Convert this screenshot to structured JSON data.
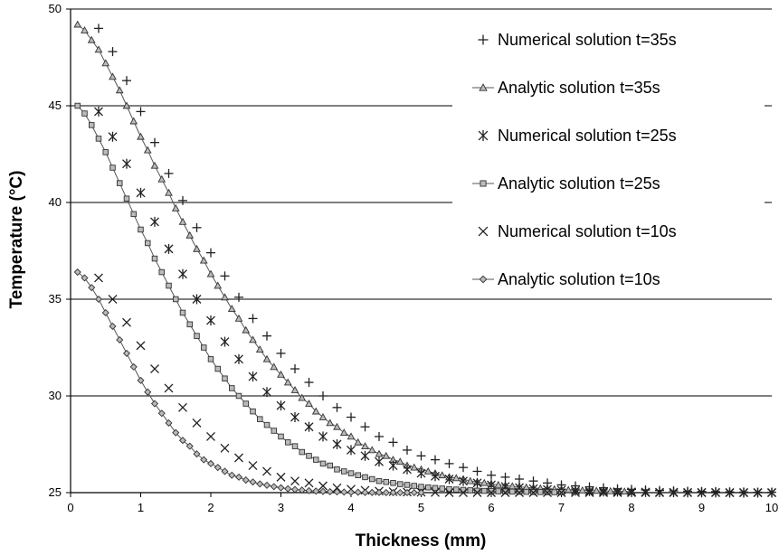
{
  "chart_data": {
    "type": "line",
    "title": "",
    "xlabel": "Thickness (mm)",
    "ylabel": "Temperature (°C)",
    "xlim": [
      0,
      10
    ],
    "ylim": [
      25,
      50
    ],
    "x_ticks": [
      "0",
      "1",
      "2",
      "3",
      "4",
      "5",
      "6",
      "7",
      "8",
      "9",
      "10"
    ],
    "y_ticks": [
      "25",
      "30",
      "35",
      "40",
      "45",
      "50"
    ],
    "grid": "horizontal",
    "legend_position": "top-right",
    "colors": {
      "line": "#555555",
      "marker": "#222222",
      "grid": "#000000"
    },
    "series": [
      {
        "name": "Numerical solution t=35s",
        "marker": "plus",
        "line": false,
        "x": [
          0.4,
          0.6,
          0.8,
          1.0,
          1.2,
          1.4,
          1.6,
          1.8,
          2.0,
          2.2,
          2.4,
          2.6,
          2.8,
          3.0,
          3.2,
          3.4,
          3.6,
          3.8,
          4.0,
          4.2,
          4.4,
          4.6,
          4.8,
          5.0,
          5.2,
          5.4,
          5.6,
          5.8,
          6.0,
          6.2,
          6.4,
          6.6,
          6.8,
          7.0,
          7.2,
          7.4,
          7.6,
          7.8,
          8.0,
          8.2,
          8.4,
          8.6,
          8.8,
          9.0,
          9.2,
          9.4,
          9.6,
          9.8,
          10.0
        ],
        "y": [
          49.0,
          47.8,
          46.3,
          44.7,
          43.1,
          41.5,
          40.1,
          38.7,
          37.4,
          36.2,
          35.1,
          34.0,
          33.1,
          32.2,
          31.4,
          30.7,
          30.0,
          29.4,
          28.9,
          28.4,
          27.9,
          27.6,
          27.2,
          26.9,
          26.7,
          26.5,
          26.3,
          26.1,
          25.9,
          25.8,
          25.7,
          25.6,
          25.5,
          25.4,
          25.35,
          25.3,
          25.25,
          25.2,
          25.17,
          25.14,
          25.11,
          25.09,
          25.07,
          25.06,
          25.05,
          25.04,
          25.03,
          25.02,
          25.02
        ]
      },
      {
        "name": "Analytic solution t=35s",
        "marker": "triangle",
        "line": true,
        "x": [
          0.1,
          0.2,
          0.3,
          0.4,
          0.5,
          0.6,
          0.7,
          0.8,
          0.9,
          1.0,
          1.1,
          1.2,
          1.3,
          1.4,
          1.5,
          1.6,
          1.7,
          1.8,
          1.9,
          2.0,
          2.1,
          2.2,
          2.3,
          2.4,
          2.5,
          2.6,
          2.7,
          2.8,
          2.9,
          3.0,
          3.1,
          3.2,
          3.3,
          3.4,
          3.5,
          3.6,
          3.7,
          3.8,
          3.9,
          4.0,
          4.1,
          4.2,
          4.3,
          4.4,
          4.5,
          4.6,
          4.7,
          4.8,
          4.9,
          5.0,
          5.1,
          5.2,
          5.3,
          5.4,
          5.5,
          5.6,
          5.7,
          5.8,
          5.9,
          6.0,
          6.1,
          6.2,
          6.3,
          6.4,
          6.5,
          6.6,
          6.7,
          6.8,
          6.9,
          7.0,
          7.1,
          7.2,
          7.3,
          7.4,
          7.5,
          7.6,
          7.7,
          7.8,
          7.9,
          8.0
        ],
        "y": [
          49.2,
          48.9,
          48.4,
          47.9,
          47.2,
          46.5,
          45.8,
          45.0,
          44.2,
          43.4,
          42.7,
          41.9,
          41.2,
          40.5,
          39.7,
          39.0,
          38.3,
          37.6,
          37.0,
          36.3,
          35.7,
          35.1,
          34.5,
          34.0,
          33.4,
          32.9,
          32.4,
          31.9,
          31.5,
          31.1,
          30.7,
          30.3,
          29.9,
          29.6,
          29.2,
          28.9,
          28.6,
          28.4,
          28.1,
          27.9,
          27.6,
          27.4,
          27.2,
          27.0,
          26.9,
          26.7,
          26.6,
          26.4,
          26.3,
          26.2,
          26.1,
          26.0,
          25.9,
          25.8,
          25.75,
          25.7,
          25.6,
          25.55,
          25.5,
          25.45,
          25.4,
          25.37,
          25.33,
          25.3,
          25.27,
          25.24,
          25.22,
          25.2,
          25.18,
          25.16,
          25.14,
          25.13,
          25.12,
          25.11,
          25.1,
          25.09,
          25.08,
          25.07,
          25.06,
          25.05
        ]
      },
      {
        "name": "Numerical solution t=25s",
        "marker": "asterisk",
        "line": false,
        "x": [
          0.4,
          0.6,
          0.8,
          1.0,
          1.2,
          1.4,
          1.6,
          1.8,
          2.0,
          2.2,
          2.4,
          2.6,
          2.8,
          3.0,
          3.2,
          3.4,
          3.6,
          3.8,
          4.0,
          4.2,
          4.4,
          4.6,
          4.8,
          5.0,
          5.2,
          5.4,
          5.6,
          5.8,
          6.0,
          6.2,
          6.4,
          6.6,
          6.8,
          7.0,
          7.2,
          7.4,
          7.6,
          7.8,
          8.0,
          8.2,
          8.4,
          8.6,
          8.8,
          9.0,
          9.2,
          9.4,
          9.6,
          9.8,
          10.0
        ],
        "y": [
          44.7,
          43.4,
          42.0,
          40.5,
          39.0,
          37.6,
          36.3,
          35.0,
          33.9,
          32.8,
          31.9,
          31.0,
          30.2,
          29.5,
          28.9,
          28.4,
          27.9,
          27.5,
          27.2,
          26.9,
          26.6,
          26.4,
          26.2,
          26.0,
          25.85,
          25.7,
          25.6,
          25.5,
          25.4,
          25.32,
          25.26,
          25.2,
          25.16,
          25.13,
          25.1,
          25.08,
          25.06,
          25.05,
          25.04,
          25.03,
          25.02,
          25.02,
          25.01,
          25.01,
          25.01,
          25.0,
          25.0,
          25.0,
          25.0
        ]
      },
      {
        "name": "Analytic solution  t=25s",
        "marker": "square",
        "line": true,
        "x": [
          0.1,
          0.2,
          0.3,
          0.4,
          0.5,
          0.6,
          0.7,
          0.8,
          0.9,
          1.0,
          1.1,
          1.2,
          1.3,
          1.4,
          1.5,
          1.6,
          1.7,
          1.8,
          1.9,
          2.0,
          2.1,
          2.2,
          2.3,
          2.4,
          2.5,
          2.6,
          2.7,
          2.8,
          2.9,
          3.0,
          3.1,
          3.2,
          3.3,
          3.4,
          3.5,
          3.6,
          3.7,
          3.8,
          3.9,
          4.0,
          4.1,
          4.2,
          4.3,
          4.4,
          4.5,
          4.6,
          4.7,
          4.8,
          4.9,
          5.0,
          5.1,
          5.2,
          5.3,
          5.4,
          5.5,
          5.6,
          5.7,
          5.8,
          5.9,
          6.0,
          6.1,
          6.2,
          6.3,
          6.4,
          6.5,
          6.6,
          6.7,
          6.8,
          6.9,
          7.0
        ],
        "y": [
          45.0,
          44.6,
          44.0,
          43.3,
          42.6,
          41.8,
          41.0,
          40.2,
          39.4,
          38.6,
          37.9,
          37.1,
          36.4,
          35.7,
          35.0,
          34.3,
          33.7,
          33.1,
          32.5,
          31.9,
          31.4,
          30.9,
          30.4,
          30.0,
          29.6,
          29.2,
          28.8,
          28.5,
          28.2,
          27.9,
          27.6,
          27.4,
          27.1,
          26.9,
          26.7,
          26.5,
          26.4,
          26.2,
          26.1,
          26.0,
          25.9,
          25.8,
          25.7,
          25.6,
          25.55,
          25.5,
          25.44,
          25.4,
          25.35,
          25.3,
          25.27,
          25.24,
          25.21,
          25.18,
          25.16,
          25.14,
          25.12,
          25.1,
          25.09,
          25.08,
          25.07,
          25.06,
          25.05,
          25.04,
          25.04,
          25.03,
          25.03,
          25.02,
          25.02,
          25.02
        ]
      },
      {
        "name": "Numerical solution t=10s",
        "marker": "cross",
        "line": false,
        "x": [
          0.4,
          0.6,
          0.8,
          1.0,
          1.2,
          1.4,
          1.6,
          1.8,
          2.0,
          2.2,
          2.4,
          2.6,
          2.8,
          3.0,
          3.2,
          3.4,
          3.6,
          3.8,
          4.0,
          4.2,
          4.4,
          4.6,
          4.8,
          5.0,
          5.2,
          5.4,
          5.6,
          5.8,
          6.0,
          6.2,
          6.4,
          6.6,
          6.8,
          7.0,
          7.2,
          7.4,
          7.6,
          7.8,
          8.0,
          8.2,
          8.4,
          8.6,
          8.8,
          9.0,
          9.2,
          9.4,
          9.6,
          9.8,
          10.0
        ],
        "y": [
          36.1,
          35.0,
          33.8,
          32.6,
          31.4,
          30.4,
          29.4,
          28.6,
          27.9,
          27.3,
          26.8,
          26.4,
          26.1,
          25.8,
          25.6,
          25.5,
          25.35,
          25.25,
          25.18,
          25.12,
          25.08,
          25.05,
          25.03,
          25.02,
          25.01,
          25.0,
          25.0,
          25.0,
          25.0,
          25.0,
          25.0,
          25.0,
          25.0,
          25.0,
          25.0,
          25.0,
          25.0,
          25.0,
          25.0,
          25.0,
          25.0,
          25.0,
          25.0,
          25.0,
          25.0,
          25.0,
          25.0,
          25.0,
          25.0
        ]
      },
      {
        "name": "Analytic solution  t=10s",
        "marker": "diamond",
        "line": true,
        "x": [
          0.1,
          0.2,
          0.3,
          0.4,
          0.5,
          0.6,
          0.7,
          0.8,
          0.9,
          1.0,
          1.1,
          1.2,
          1.3,
          1.4,
          1.5,
          1.6,
          1.7,
          1.8,
          1.9,
          2.0,
          2.1,
          2.2,
          2.3,
          2.4,
          2.5,
          2.6,
          2.7,
          2.8,
          2.9,
          3.0,
          3.1,
          3.2,
          3.3,
          3.4,
          3.5,
          3.6,
          3.7,
          3.8,
          3.9,
          4.0,
          4.1,
          4.2,
          4.3,
          4.4,
          4.5,
          4.6,
          4.7,
          4.8,
          4.9,
          5.0
        ],
        "y": [
          36.4,
          36.1,
          35.6,
          35.0,
          34.3,
          33.6,
          32.9,
          32.2,
          31.5,
          30.8,
          30.2,
          29.6,
          29.1,
          28.6,
          28.1,
          27.7,
          27.4,
          27.0,
          26.7,
          26.5,
          26.3,
          26.1,
          25.9,
          25.8,
          25.65,
          25.55,
          25.45,
          25.38,
          25.31,
          25.25,
          25.2,
          25.16,
          25.13,
          25.1,
          25.08,
          25.06,
          25.05,
          25.04,
          25.03,
          25.02,
          25.02,
          25.01,
          25.01,
          25.01,
          25.0,
          25.0,
          25.0,
          25.0,
          25.0,
          25.0
        ]
      }
    ]
  }
}
